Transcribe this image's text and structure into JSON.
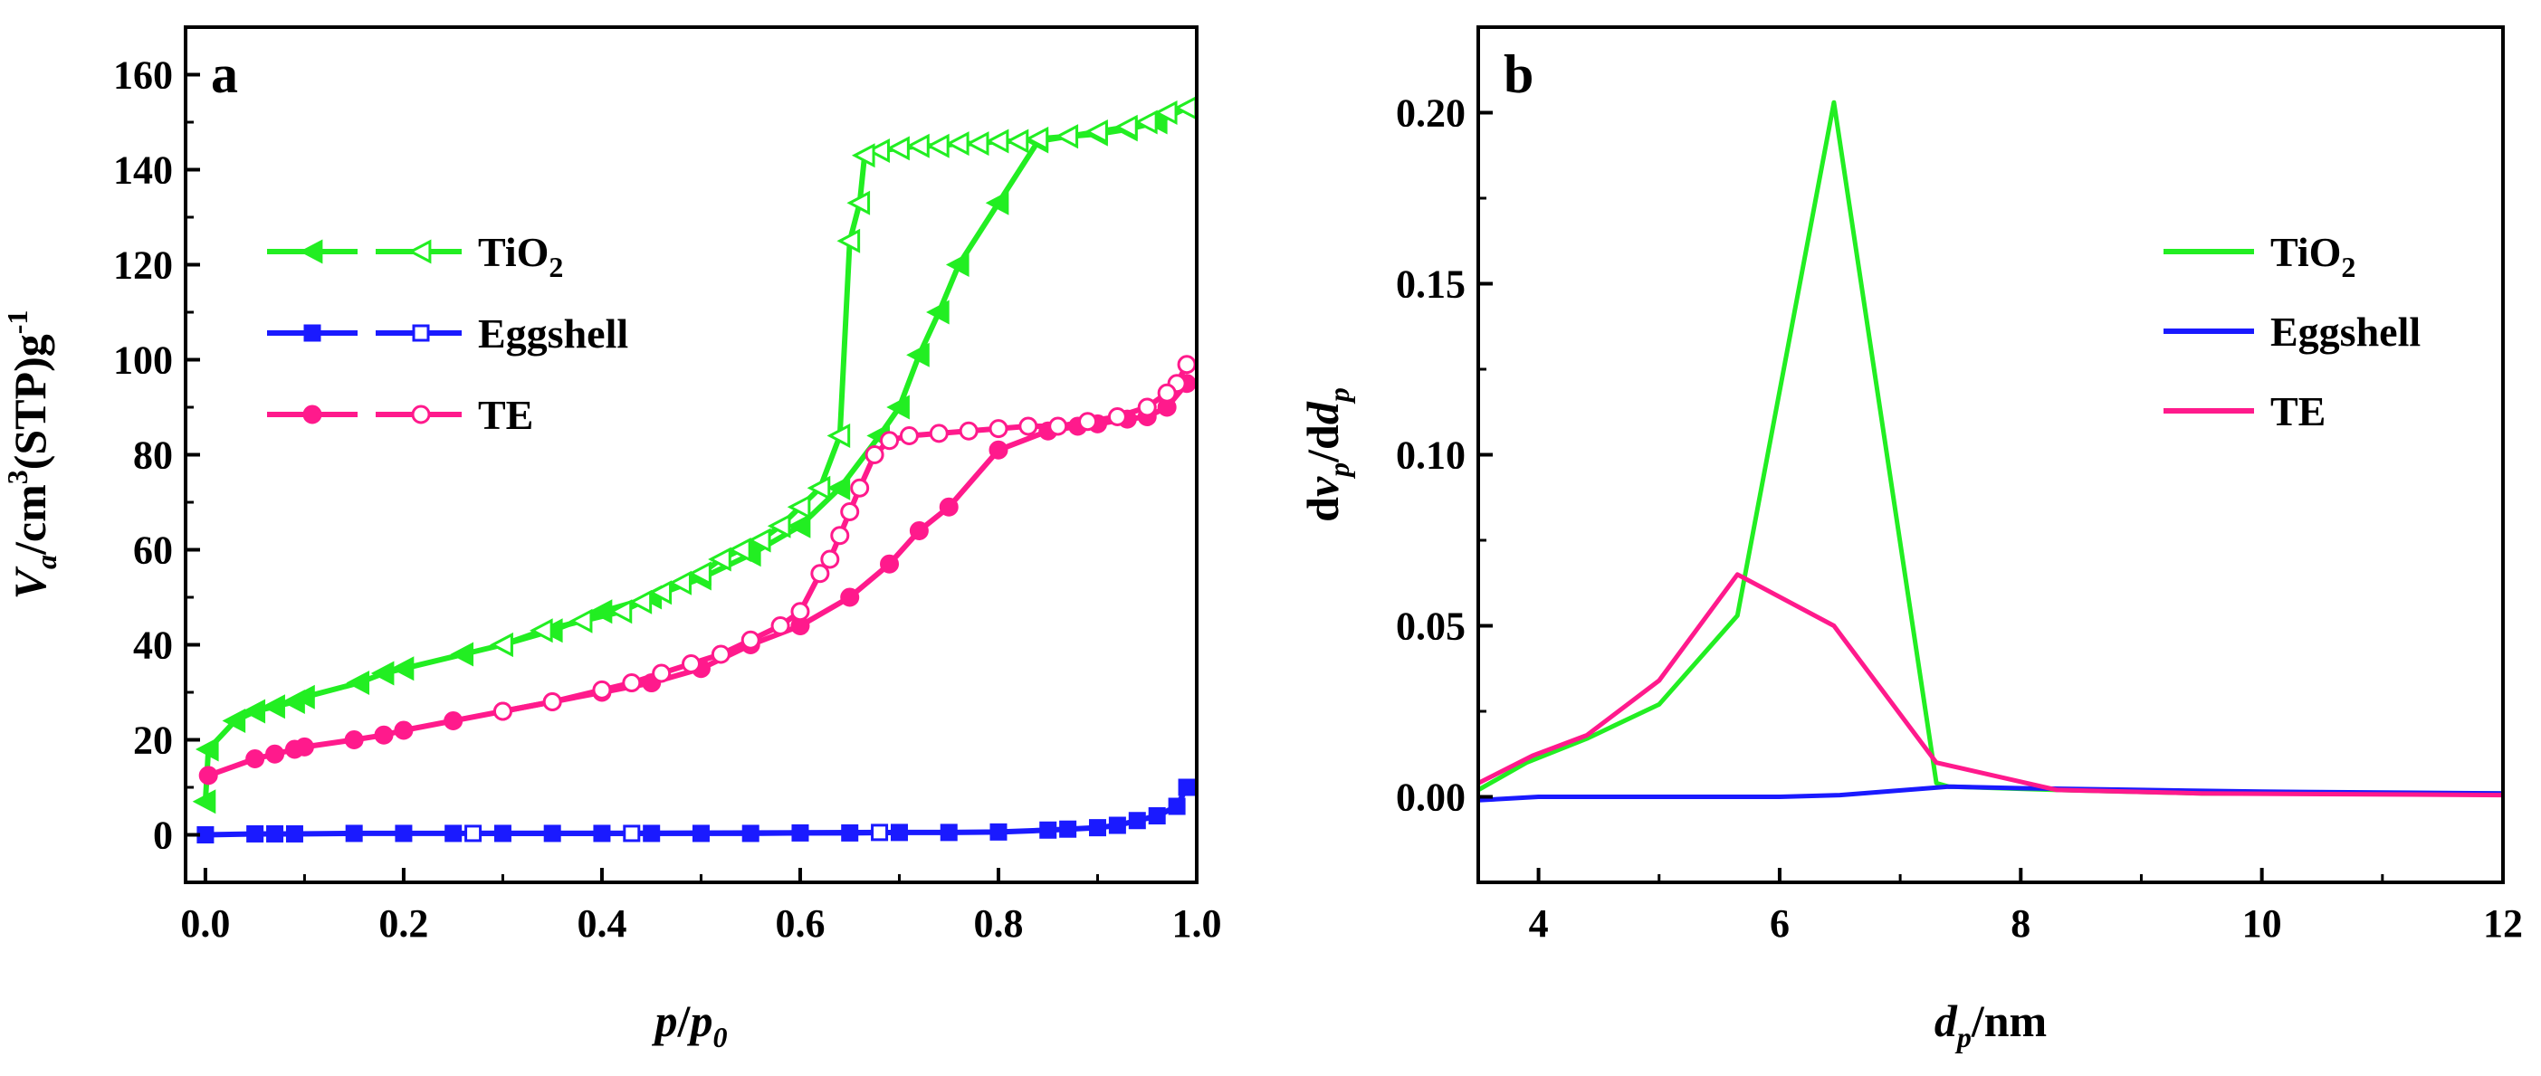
{
  "chart_data": [
    {
      "panel": "a",
      "type": "line",
      "panel_label": "a",
      "xlabel": "p/p0",
      "ylabel": "Va/cm3(STP)g-1",
      "xlim": [
        -0.02,
        1.0
      ],
      "ylim": [
        -10,
        170
      ],
      "xticks": [
        0.0,
        0.2,
        0.4,
        0.6,
        0.8,
        1.0
      ],
      "xtick_labels": [
        "0.0",
        "0.2",
        "0.4",
        "0.6",
        "0.8",
        "1.0"
      ],
      "yticks": [
        0,
        20,
        40,
        60,
        80,
        100,
        120,
        140,
        160
      ],
      "ytick_labels": [
        "0",
        "20",
        "40",
        "60",
        "80",
        "100",
        "120",
        "140",
        "160"
      ],
      "legend_position": "upper-left",
      "legend": [
        {
          "name": "TiO2",
          "base": "TiO",
          "sub": "2",
          "color": "#22ee22",
          "marker": "triangle-left"
        },
        {
          "name": "Eggshell",
          "base": "Eggshell",
          "sub": "",
          "color": "#1a1aff",
          "marker": "square"
        },
        {
          "name": "TE",
          "base": "TE",
          "sub": "",
          "color": "#ff1a8c",
          "marker": "circle"
        }
      ],
      "series": [
        {
          "name": "TiO2 adsorption",
          "color": "#22ee22",
          "marker": "triangle-left",
          "filled": true,
          "x": [
            0.0,
            0.003,
            0.03,
            0.05,
            0.07,
            0.09,
            0.1,
            0.155,
            0.18,
            0.2,
            0.26,
            0.3,
            0.35,
            0.4,
            0.45,
            0.5,
            0.55,
            0.6,
            0.64,
            0.68,
            0.7,
            0.72,
            0.74,
            0.76,
            0.8,
            0.84,
            0.87,
            0.9,
            0.93,
            0.96,
            0.99
          ],
          "y": [
            7,
            18,
            24,
            26,
            27,
            28,
            29,
            32,
            34,
            35,
            38,
            40,
            43,
            47,
            50,
            54,
            59,
            65,
            73,
            84,
            90,
            101,
            110,
            120,
            133,
            146,
            147,
            147.5,
            148.5,
            150,
            153
          ]
        },
        {
          "name": "TiO2 desorption",
          "color": "#22ee22",
          "marker": "triangle-left",
          "filled": false,
          "x": [
            0.99,
            0.97,
            0.95,
            0.93,
            0.9,
            0.87,
            0.84,
            0.82,
            0.8,
            0.78,
            0.76,
            0.74,
            0.72,
            0.7,
            0.68,
            0.665,
            0.66,
            0.65,
            0.64,
            0.62,
            0.6,
            0.58,
            0.56,
            0.54,
            0.52,
            0.5,
            0.48,
            0.46,
            0.44,
            0.42,
            0.38,
            0.34,
            0.3
          ],
          "y": [
            153,
            152,
            150,
            149,
            148,
            147,
            146.5,
            146,
            146,
            145.5,
            145.5,
            145,
            145,
            144.5,
            144,
            143,
            133,
            125,
            84,
            73,
            69,
            65,
            62,
            60,
            58,
            55,
            53,
            51,
            49,
            47,
            45,
            43,
            40
          ]
        },
        {
          "name": "Eggshell adsorption",
          "color": "#1a1aff",
          "marker": "square",
          "filled": true,
          "x": [
            0.0,
            0.05,
            0.07,
            0.09,
            0.15,
            0.2,
            0.25,
            0.3,
            0.35,
            0.4,
            0.45,
            0.5,
            0.55,
            0.6,
            0.65,
            0.7,
            0.75,
            0.8,
            0.85,
            0.87,
            0.9,
            0.92,
            0.94,
            0.96,
            0.98,
            0.99
          ],
          "y": [
            0,
            0.2,
            0.2,
            0.2,
            0.3,
            0.3,
            0.3,
            0.3,
            0.3,
            0.3,
            0.3,
            0.3,
            0.3,
            0.4,
            0.4,
            0.5,
            0.5,
            0.6,
            1,
            1.2,
            1.5,
            2,
            3,
            4,
            6,
            10
          ]
        },
        {
          "name": "Eggshell desorption",
          "color": "#1a1aff",
          "marker": "square",
          "filled": false,
          "x": [
            0.27,
            0.43,
            0.68
          ],
          "y": [
            0.3,
            0.3,
            0.5
          ]
        },
        {
          "name": "TE adsorption",
          "color": "#ff1a8c",
          "marker": "circle",
          "filled": true,
          "x": [
            0.003,
            0.05,
            0.07,
            0.09,
            0.1,
            0.15,
            0.18,
            0.2,
            0.25,
            0.3,
            0.35,
            0.4,
            0.45,
            0.5,
            0.55,
            0.6,
            0.65,
            0.69,
            0.72,
            0.75,
            0.8,
            0.85,
            0.88,
            0.9,
            0.93,
            0.95,
            0.97,
            0.99
          ],
          "y": [
            12.5,
            16,
            17,
            18,
            18.5,
            20,
            21,
            22,
            24,
            26,
            28,
            30,
            32,
            35,
            40,
            44,
            50,
            57,
            64,
            69,
            81,
            85,
            86,
            86.5,
            87.5,
            88,
            90,
            95
          ]
        },
        {
          "name": "TE desorption",
          "color": "#ff1a8c",
          "marker": "circle",
          "filled": false,
          "x": [
            0.99,
            0.98,
            0.97,
            0.95,
            0.92,
            0.89,
            0.86,
            0.83,
            0.8,
            0.77,
            0.74,
            0.71,
            0.69,
            0.675,
            0.66,
            0.65,
            0.64,
            0.63,
            0.62,
            0.6,
            0.58,
            0.55,
            0.52,
            0.49,
            0.46,
            0.43,
            0.4,
            0.35,
            0.3
          ],
          "y": [
            99,
            95,
            93,
            90,
            88,
            87,
            86,
            86,
            85.5,
            85,
            84.5,
            84,
            83,
            80,
            73,
            68,
            63,
            58,
            55,
            47,
            44,
            41,
            38,
            36,
            34,
            32,
            30.5,
            28,
            26
          ]
        }
      ]
    },
    {
      "panel": "b",
      "type": "line",
      "panel_label": "b",
      "xlabel": "dp/nm",
      "ylabel": "dvp/ddp",
      "xlim": [
        3.5,
        12
      ],
      "ylim": [
        -0.025,
        0.225
      ],
      "xticks": [
        4,
        6,
        8,
        10,
        12
      ],
      "xtick_labels": [
        "4",
        "6",
        "8",
        "10",
        "12"
      ],
      "yticks": [
        0.0,
        0.05,
        0.1,
        0.15,
        0.2
      ],
      "ytick_labels": [
        "0.00",
        "0.05",
        "0.10",
        "0.15",
        "0.20"
      ],
      "legend_position": "upper-right",
      "legend": [
        {
          "name": "TiO2",
          "base": "TiO",
          "sub": "2",
          "color": "#22ee22"
        },
        {
          "name": "Eggshell",
          "base": "Eggshell",
          "sub": "",
          "color": "#1a1aff"
        },
        {
          "name": "TE",
          "base": "TE",
          "sub": "",
          "color": "#ff1a8c"
        }
      ],
      "series": [
        {
          "name": "TiO2",
          "color": "#22ee22",
          "x": [
            3.5,
            3.9,
            4.4,
            5.0,
            5.65,
            6.45,
            7.3,
            7.4,
            8.3,
            9.5,
            12
          ],
          "y": [
            0.002,
            0.01,
            0.017,
            0.027,
            0.053,
            0.203,
            0.004,
            0.003,
            0.002,
            0.001,
            0.001
          ]
        },
        {
          "name": "Eggshell",
          "color": "#1a1aff",
          "x": [
            3.5,
            4.0,
            5.0,
            6.0,
            6.5,
            7.4,
            8.0,
            9.0,
            10.0,
            12.0
          ],
          "y": [
            -0.001,
            0.0,
            0.0,
            0.0,
            0.0005,
            0.003,
            0.0025,
            0.002,
            0.0015,
            0.001
          ]
        },
        {
          "name": "TE",
          "color": "#ff1a8c",
          "x": [
            3.5,
            3.95,
            4.4,
            5.0,
            5.65,
            6.45,
            7.3,
            8.3,
            9.5,
            12.0
          ],
          "y": [
            0.004,
            0.012,
            0.018,
            0.034,
            0.065,
            0.05,
            0.01,
            0.002,
            0.001,
            0.0005
          ]
        }
      ]
    }
  ]
}
